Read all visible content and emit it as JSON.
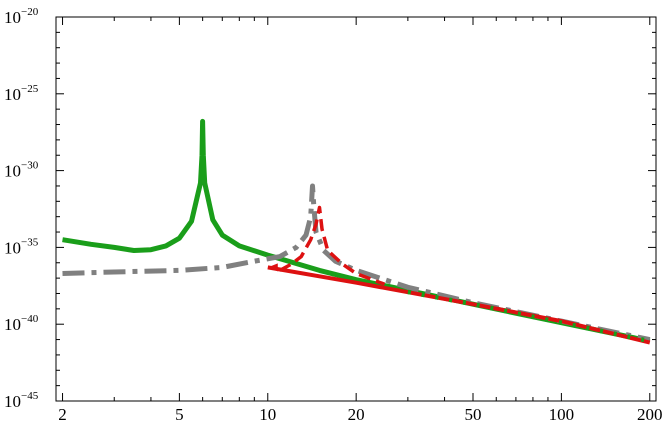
{
  "chart_data": {
    "type": "line",
    "title": "",
    "xlabel": "",
    "ylabel": "",
    "x_scale": "log",
    "y_scale": "log",
    "xlim": [
      1.9,
      210
    ],
    "ylim": [
      1e-45,
      1e-20
    ],
    "x_major_ticks": [
      2,
      5,
      10,
      20,
      50,
      100,
      200
    ],
    "x_tick_labels": [
      "2",
      "5",
      "10",
      "20",
      "50",
      "100",
      "200"
    ],
    "y_major_ticks_exp": [
      -45,
      -40,
      -35,
      -30,
      -25,
      -20
    ],
    "y_tick_base": "10",
    "y_tick_exponents": [
      "−45",
      "−40",
      "−35",
      "−30",
      "−25",
      "−20"
    ],
    "grid": false,
    "legend": "none",
    "series": [
      {
        "style": "solid-thick",
        "color": "#1a9e1a",
        "points_log10y": [
          [
            2,
            -34.5
          ],
          [
            2.5,
            -34.8
          ],
          [
            3,
            -35.0
          ],
          [
            3.5,
            -35.2
          ],
          [
            4,
            -35.15
          ],
          [
            4.5,
            -34.9
          ],
          [
            5,
            -34.4
          ],
          [
            5.5,
            -33.3
          ],
          [
            5.9,
            -30.8
          ],
          [
            5.97,
            -29
          ],
          [
            6.0,
            -26.8
          ],
          [
            6.03,
            -29
          ],
          [
            6.1,
            -30.8
          ],
          [
            6.5,
            -33.2
          ],
          [
            7,
            -34.2
          ],
          [
            8,
            -34.9
          ],
          [
            10,
            -35.5
          ],
          [
            15,
            -36.5
          ],
          [
            20,
            -37.1
          ],
          [
            30,
            -37.8
          ],
          [
            50,
            -38.7
          ],
          [
            100,
            -39.9
          ],
          [
            200,
            -41.1
          ]
        ]
      },
      {
        "style": "dash-dot",
        "color": "#808080",
        "points_log10y": [
          [
            2,
            -36.7
          ],
          [
            3,
            -36.6
          ],
          [
            5,
            -36.5
          ],
          [
            7,
            -36.3
          ],
          [
            9,
            -35.9
          ],
          [
            11,
            -35.6
          ],
          [
            12.5,
            -35.0
          ],
          [
            13.5,
            -34.2
          ],
          [
            14.0,
            -33.0
          ],
          [
            14.2,
            -31.0
          ],
          [
            14.35,
            -32.3
          ],
          [
            14.6,
            -34.0
          ],
          [
            15.5,
            -35.2
          ],
          [
            17,
            -35.9
          ],
          [
            20,
            -36.5
          ],
          [
            30,
            -37.6
          ],
          [
            50,
            -38.6
          ],
          [
            100,
            -39.8
          ],
          [
            200,
            -41.0
          ]
        ]
      },
      {
        "style": "dashed",
        "color": "#dd1111",
        "points_log10y": [
          [
            11.0,
            -36.5
          ],
          [
            12,
            -36.1
          ],
          [
            13,
            -35.6
          ],
          [
            14,
            -34.5
          ],
          [
            14.6,
            -33.5
          ],
          [
            15.0,
            -32.4
          ],
          [
            15.3,
            -33.8
          ],
          [
            16,
            -35.2
          ],
          [
            18,
            -36.1
          ],
          [
            20,
            -36.7
          ],
          [
            25,
            -37.4
          ]
        ]
      },
      {
        "style": "solid",
        "color": "#dd1111",
        "points_log10y": [
          [
            10,
            -36.3
          ],
          [
            20,
            -37.3
          ],
          [
            50,
            -38.7
          ],
          [
            100,
            -39.8
          ],
          [
            200,
            -41.2
          ]
        ]
      },
      {
        "style": "dotted-thick",
        "color": "#1a9e1a",
        "points_log10y": [
          [
            30,
            -37.9
          ],
          [
            50,
            -38.7
          ],
          [
            100,
            -39.9
          ],
          [
            200,
            -41.1
          ]
        ]
      }
    ]
  }
}
